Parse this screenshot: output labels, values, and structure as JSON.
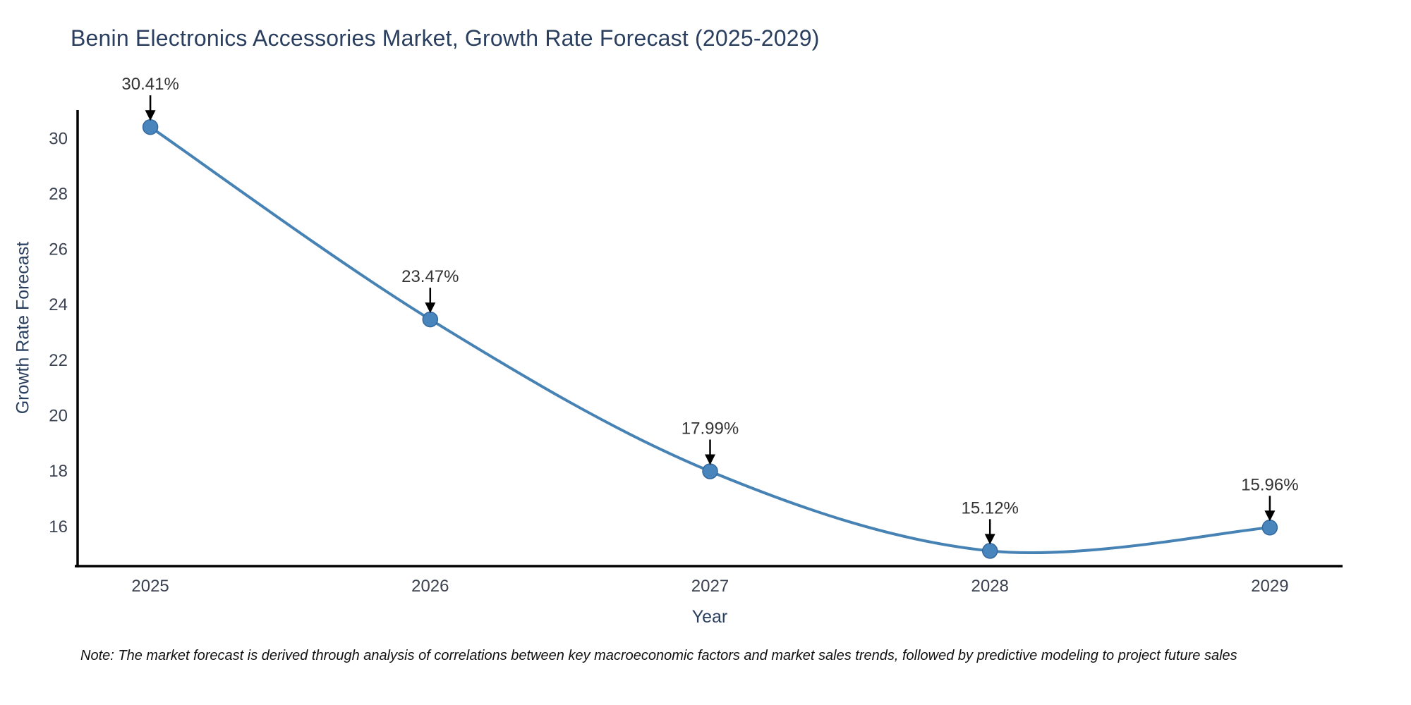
{
  "figure": {
    "note": "Note: The market forecast is derived through analysis of correlations between key macroeconomic factors and market sales trends, followed by predictive modeling to project future sales"
  },
  "chart_data": {
    "type": "line",
    "title": "Benin Electronics Accessories Market, Growth Rate Forecast (2025-2029)",
    "xlabel": "Year",
    "ylabel": "Growth Rate Forecast",
    "x": [
      2025,
      2026,
      2027,
      2028,
      2029
    ],
    "series": [
      {
        "name": "Growth Rate Forecast",
        "values": [
          30.41,
          23.47,
          17.99,
          15.12,
          15.96
        ],
        "point_labels": [
          "30.41%",
          "23.47%",
          "17.99%",
          "15.12%",
          "15.96%"
        ]
      }
    ],
    "xticks": [
      "2025",
      "2026",
      "2027",
      "2028",
      "2029"
    ],
    "yticks": [
      16,
      18,
      20,
      22,
      24,
      26,
      28,
      30
    ],
    "xlim": [
      2024.74,
      2029.26
    ],
    "ylim": [
      14.57,
      31.0
    ],
    "grid": false,
    "legend": false,
    "line_shape": "spline",
    "marker": "circle",
    "annotation_arrows": true,
    "colors": {
      "line": "#4682b4",
      "marker_fill": "#4985bd",
      "marker_edge": "#33689e",
      "axis": "#000000",
      "arrow": "#000000",
      "title": "#2a3f5f",
      "axis_title": "#2a3f5f",
      "tick": "#3b4252",
      "annotation": "#333333",
      "note": "#111111",
      "background": "#ffffff"
    }
  }
}
